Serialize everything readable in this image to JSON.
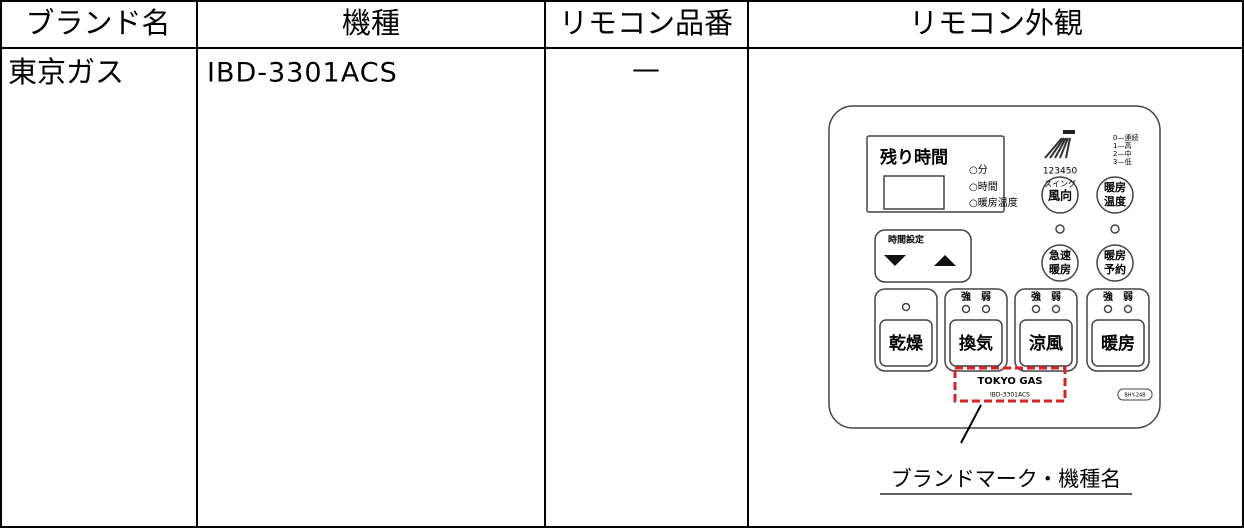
{
  "table": {
    "headers": [
      "ブランド名",
      "機種",
      "リモコン品番",
      "リモコン外観"
    ],
    "rows": [
      {
        "brand": "東京ガス",
        "model": "IBD-3301ACS",
        "remote_number": "—",
        "appearance": {
          "display_label": "残り時間",
          "timer_units": [
            "○分",
            "○時間",
            "○暖房温度"
          ],
          "swing_numbers": "123450",
          "swing_label": "スイング",
          "speed_legend": [
            "0—連続",
            "1—高",
            "2—中",
            "3—低"
          ],
          "wind_direction": "風向",
          "heating_temp": [
            "暖房",
            "温度"
          ],
          "time_setting": "時間設定",
          "rapid_heating": [
            "急速",
            "暖房"
          ],
          "heating_reserve": [
            "暖房",
            "予約"
          ],
          "strong": "強",
          "weak": "弱",
          "modes": [
            "乾燥",
            "換気",
            "涼風",
            "暖房"
          ],
          "brand_mark": "TOKYO GAS",
          "model_mark": "IBD-3301ACS",
          "unit_code": "BHY-24B",
          "caption": "ブランドマーク・機種名"
        }
      }
    ]
  }
}
